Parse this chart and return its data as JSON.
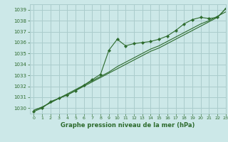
{
  "title": "Graphe pression niveau de la mer (hPa)",
  "bg_color": "#cce8e8",
  "grid_color": "#aacccc",
  "line_color": "#2d6b2d",
  "xlim": [
    -0.5,
    23
  ],
  "ylim": [
    1029.5,
    1039.5
  ],
  "yticks": [
    1030,
    1031,
    1032,
    1033,
    1034,
    1035,
    1036,
    1037,
    1038,
    1039
  ],
  "xticks": [
    0,
    1,
    2,
    3,
    4,
    5,
    6,
    7,
    8,
    9,
    10,
    11,
    12,
    13,
    14,
    15,
    16,
    17,
    18,
    19,
    20,
    21,
    22,
    23
  ],
  "series1": [
    1029.7,
    1030.0,
    1030.6,
    1030.9,
    1031.2,
    1031.6,
    1032.1,
    1032.6,
    1033.1,
    1035.3,
    1036.3,
    1035.7,
    1035.9,
    1036.0,
    1036.1,
    1036.3,
    1036.6,
    1037.1,
    1037.7,
    1038.1,
    1038.3,
    1038.2,
    1038.3,
    1039.1
  ],
  "series2": [
    1029.8,
    1030.1,
    1030.5,
    1030.9,
    1031.3,
    1031.7,
    1032.1,
    1032.5,
    1032.9,
    1033.3,
    1033.8,
    1034.2,
    1034.6,
    1035.0,
    1035.4,
    1035.7,
    1036.1,
    1036.5,
    1036.9,
    1037.3,
    1037.7,
    1038.0,
    1038.4,
    1038.8
  ],
  "series3": [
    1029.8,
    1030.1,
    1030.5,
    1030.9,
    1031.2,
    1031.6,
    1032.0,
    1032.4,
    1032.8,
    1033.2,
    1033.6,
    1034.0,
    1034.4,
    1034.8,
    1035.2,
    1035.5,
    1035.9,
    1036.3,
    1036.7,
    1037.1,
    1037.5,
    1037.9,
    1038.3,
    1039.1
  ]
}
